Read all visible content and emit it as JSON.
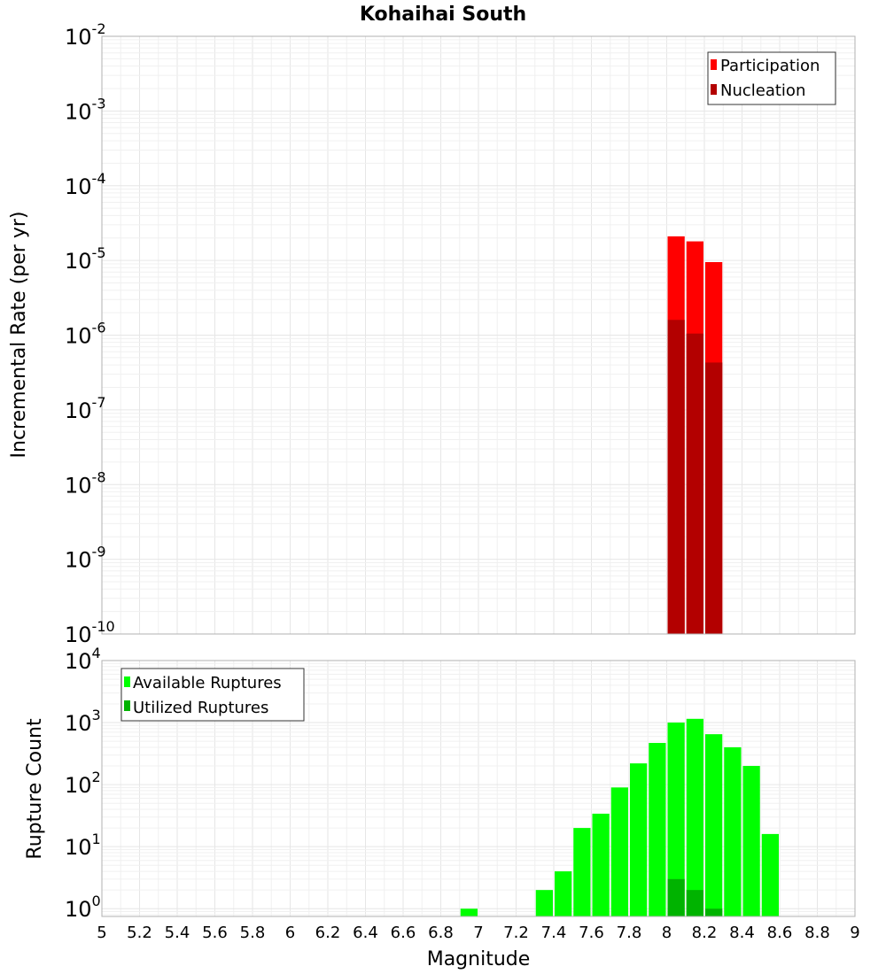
{
  "chart_data": [
    {
      "type": "bar",
      "title": "Kohaihai South",
      "xlabel": "",
      "ylabel": "Incremental Rate (per yr)",
      "xlim": [
        5,
        9
      ],
      "ylim": [
        1e-10,
        0.01
      ],
      "yscale": "log",
      "ytick_exponents": [
        "-10",
        "-9",
        "-8",
        "-7",
        "-6",
        "-5",
        "-4",
        "-3",
        "-2"
      ],
      "grid": true,
      "legend": "top-right",
      "bar_width": 0.1,
      "series": [
        {
          "name": "Participation",
          "color": "#ff0000",
          "x": [
            8.05,
            8.15,
            8.25
          ],
          "values": [
            2.1e-05,
            1.8e-05,
            9.5e-06
          ]
        },
        {
          "name": "Nucleation",
          "color": "#b30000",
          "x": [
            8.05,
            8.15,
            8.25
          ],
          "values": [
            1.6e-06,
            1.05e-06,
            4.3e-07
          ]
        }
      ]
    },
    {
      "type": "bar",
      "title": "",
      "xlabel": "Magnitude",
      "ylabel": "Rupture Count",
      "xlim": [
        5,
        9
      ],
      "ylim": [
        0.75,
        10000.0
      ],
      "yscale": "log",
      "ytick_exponents": [
        "0",
        "1",
        "2",
        "3",
        "4"
      ],
      "xticks": [
        "5",
        "5.2",
        "5.4",
        "5.6",
        "5.8",
        "6",
        "6.2",
        "6.4",
        "6.6",
        "6.8",
        "7",
        "7.2",
        "7.4",
        "7.6",
        "7.8",
        "8",
        "8.2",
        "8.4",
        "8.6",
        "8.8",
        "9"
      ],
      "grid": true,
      "legend": "top-left",
      "bar_width": 0.1,
      "series": [
        {
          "name": "Available Ruptures",
          "color": "#00ff00",
          "x": [
            6.95,
            7.35,
            7.45,
            7.55,
            7.65,
            7.75,
            7.85,
            7.95,
            8.05,
            8.15,
            8.25,
            8.35,
            8.45,
            8.55
          ],
          "values": [
            1,
            2,
            4,
            20,
            34,
            90,
            220,
            470,
            1000,
            1150,
            650,
            400,
            200,
            16
          ]
        },
        {
          "name": "Utilized Ruptures",
          "color": "#00b300",
          "x": [
            8.05,
            8.15,
            8.25
          ],
          "values": [
            3,
            2,
            1
          ]
        }
      ]
    }
  ]
}
